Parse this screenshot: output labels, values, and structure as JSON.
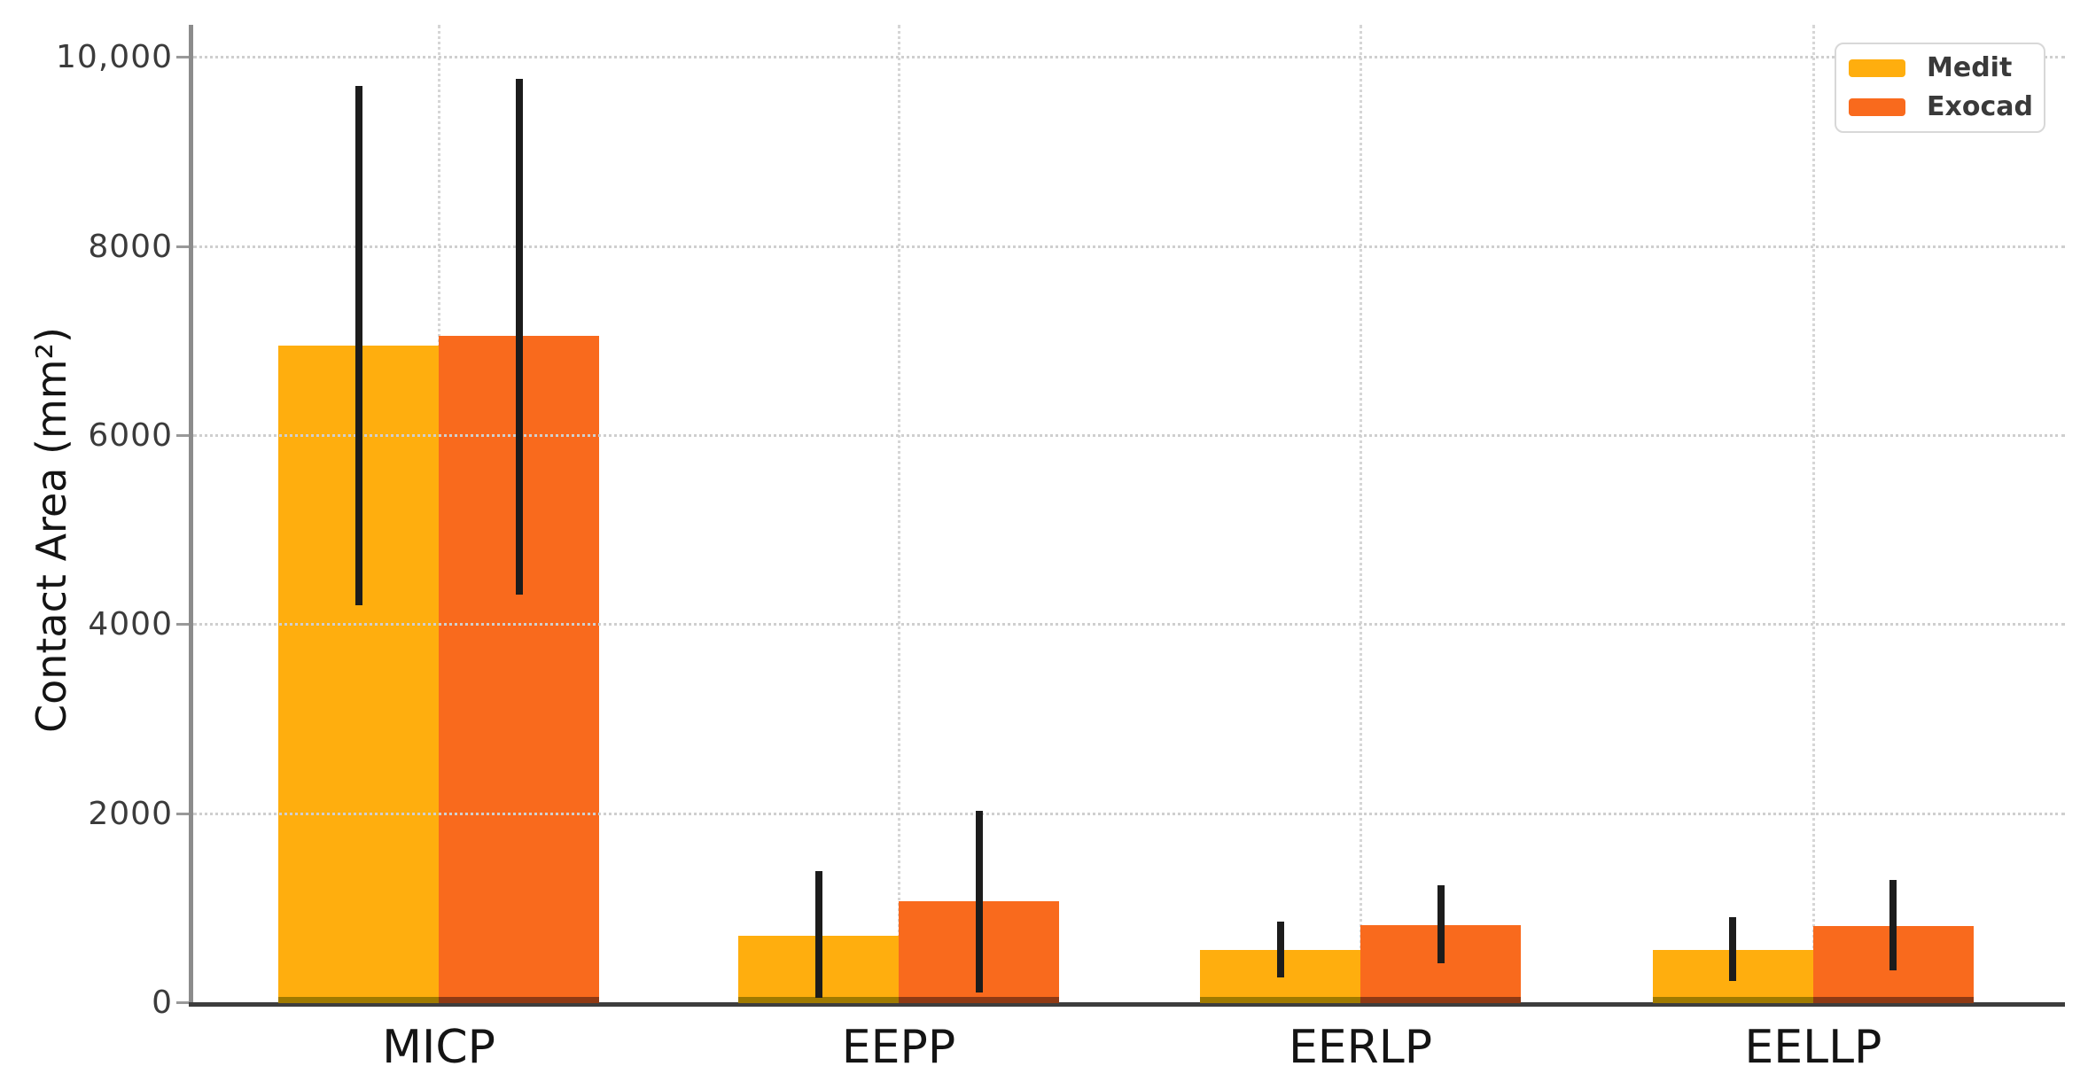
{
  "figure": {
    "background_color": "#ffffff",
    "title": ""
  },
  "y_axis": {
    "label": "Contact Area (mm²)",
    "tick_labels": [
      "0",
      "2000",
      "4000",
      "6000",
      "8000",
      "10,000"
    ],
    "tick_values": [
      0,
      2000,
      4000,
      6000,
      8000,
      10000
    ],
    "spine_color": "#8c8c8c",
    "tick_color": "#999999"
  },
  "x_axis": {
    "categories": [
      "MICP",
      "EEPP",
      "EERLP",
      "EELLP"
    ],
    "spine_color": "#3d3d3d"
  },
  "legend": {
    "position": "upper right",
    "items": [
      {
        "label": "Medit",
        "color": "#FFAE0E"
      },
      {
        "label": "Exocad",
        "color": "#F96A1D"
      }
    ]
  },
  "chart_data": {
    "type": "bar",
    "title": "",
    "xlabel": "",
    "ylabel": "Contact Area (mm²)",
    "categories": [
      "MICP",
      "EEPP",
      "EERLP",
      "EELLP"
    ],
    "series": [
      {
        "name": "Medit",
        "color": "#FFAE0E",
        "edge_color": "#A07A00",
        "values": [
          6960,
          710,
          560,
          560
        ],
        "error_low": [
          4210,
          60,
          270,
          230
        ],
        "error_high": [
          9700,
          1400,
          860,
          910
        ]
      },
      {
        "name": "Exocad",
        "color": "#F96A1D",
        "edge_color": "#8F3A14",
        "values": [
          7060,
          1080,
          825,
          815
        ],
        "error_low": [
          4320,
          110,
          420,
          350
        ],
        "error_high": [
          9780,
          2030,
          1250,
          1300
        ]
      }
    ],
    "ylim": [
      0,
      10350
    ],
    "grid": "dotted light-gray, horizontal at each y tick and vertical at each category center",
    "legend_position": "upper right",
    "error_bar_color": "#1c1c1c"
  }
}
